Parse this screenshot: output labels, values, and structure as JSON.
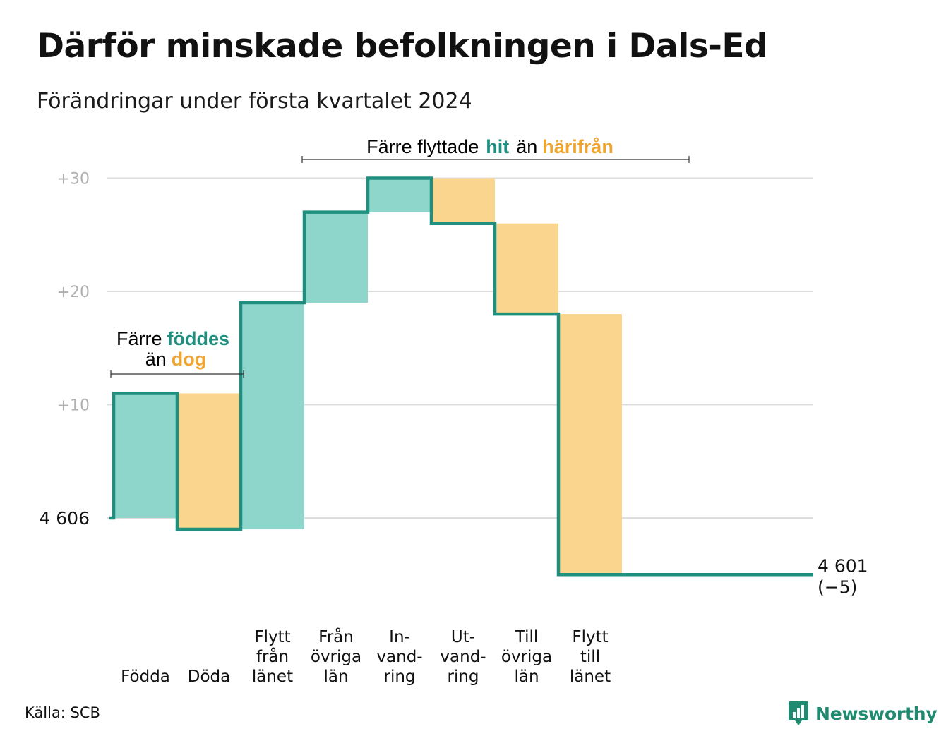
{
  "title": "Därför minskade befolkningen i Dals-Ed",
  "subtitle": "Förändringar under första kvartalet 2024",
  "source": "Källa: SCB",
  "brand": "Newsworthy",
  "colors": {
    "increase": "#8ed5cb",
    "decrease": "#fad58e",
    "line": "#1f9080",
    "grid": "#dddddd",
    "teal_text": "#1f9080",
    "orange_text": "#f0a530"
  },
  "annotations": {
    "births_deaths": {
      "line1_plain": "Färre",
      "line1_teal": "föddes",
      "line2_plain": "än",
      "line2_orange": "dog"
    },
    "migration": {
      "plain1": "Färre flyttade",
      "teal": "hit",
      "plain2": "än",
      "orange": "härifrån"
    }
  },
  "chart_data": {
    "type": "waterfall",
    "title": "Därför minskade befolkningen i Dals-Ed",
    "subtitle": "Förändringar under första kvartalet 2024",
    "baseline": 4606,
    "baseline_label": "4 606",
    "end_value": 4601,
    "end_label": "4 601",
    "end_change_label": "(−5)",
    "y_ticks": [
      {
        "value": 10,
        "label": "+10"
      },
      {
        "value": 20,
        "label": "+20"
      },
      {
        "value": 30,
        "label": "+30"
      }
    ],
    "ylim": [
      -5,
      30
    ],
    "grid": true,
    "categories": [
      {
        "label": [
          "Födda"
        ],
        "change": 11
      },
      {
        "label": [
          "Döda"
        ],
        "change": -12
      },
      {
        "label": [
          "Flytt",
          "från",
          "länet"
        ],
        "change": 20
      },
      {
        "label": [
          "Från",
          "övriga",
          "län"
        ],
        "change": 8
      },
      {
        "label": [
          "In-",
          "vand-",
          "ring"
        ],
        "change": 3
      },
      {
        "label": [
          "Ut-",
          "vand-",
          "ring"
        ],
        "change": -4
      },
      {
        "label": [
          "Till",
          "övriga",
          "län"
        ],
        "change": -8
      },
      {
        "label": [
          "Flytt",
          "till",
          "länet"
        ],
        "change": -23
      }
    ]
  }
}
